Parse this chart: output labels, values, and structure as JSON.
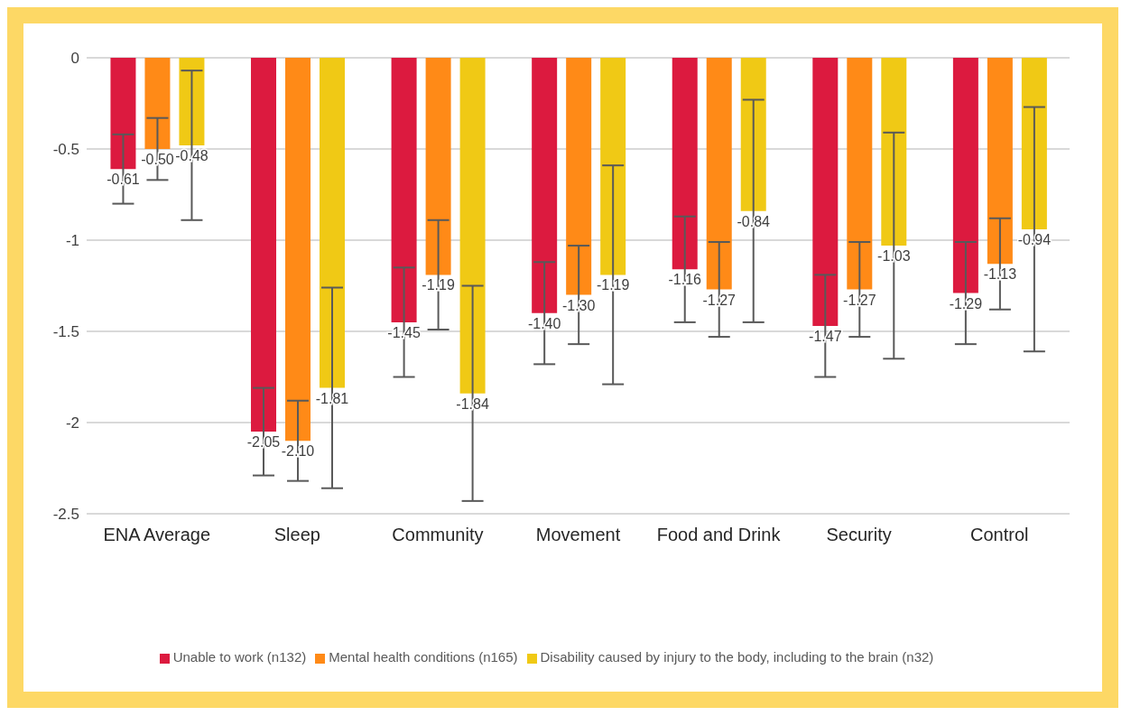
{
  "chart_data": {
    "type": "bar",
    "categories": [
      "ENA Average",
      "Sleep",
      "Community",
      "Movement",
      "Food and Drink",
      "Security",
      "Control"
    ],
    "series": [
      {
        "name": "Unable to work (n132)",
        "color": "#dc1a3f",
        "values": [
          -0.61,
          -2.05,
          -1.45,
          -1.4,
          -1.16,
          -1.47,
          -1.29
        ],
        "errors": [
          0.19,
          0.24,
          0.3,
          0.28,
          0.29,
          0.28,
          0.28
        ],
        "value_labels": [
          "-0.61",
          "-2.05",
          "-1.45",
          "-1.40",
          "-1.16",
          "-1.47",
          "-1.29"
        ]
      },
      {
        "name": "Mental health conditions (n165)",
        "color": "#ff8a17",
        "values": [
          -0.5,
          -2.1,
          -1.19,
          -1.3,
          -1.27,
          -1.27,
          -1.13
        ],
        "errors": [
          0.17,
          0.22,
          0.3,
          0.27,
          0.26,
          0.26,
          0.25
        ],
        "value_labels": [
          "-0.50",
          "-2.10",
          "-1.19",
          "-1.30",
          "-1.27",
          "-1.27",
          "-1.13"
        ]
      },
      {
        "name": "Disability caused by injury to the body, including to the brain (n32)",
        "color": "#f0c915",
        "values": [
          -0.48,
          -1.81,
          -1.84,
          -1.19,
          -0.84,
          -1.03,
          -0.94
        ],
        "errors": [
          0.41,
          0.55,
          0.59,
          0.6,
          0.61,
          0.62,
          0.67
        ],
        "value_labels": [
          "-0.48",
          "-1.81",
          "-1.84",
          "-1.19",
          "-0.84",
          "-1.03",
          "-0.94"
        ]
      }
    ],
    "ylim": [
      -2.5,
      0
    ],
    "yticks": [
      {
        "value": -2.5,
        "label": "-2.5"
      },
      {
        "value": -2,
        "label": "-2"
      },
      {
        "value": -1.5,
        "label": "-1.5"
      },
      {
        "value": -1,
        "label": "-1"
      },
      {
        "value": -0.5,
        "label": "-0.5"
      },
      {
        "value": 0,
        "label": "0"
      }
    ],
    "grid": "y",
    "legend": "bottom"
  }
}
